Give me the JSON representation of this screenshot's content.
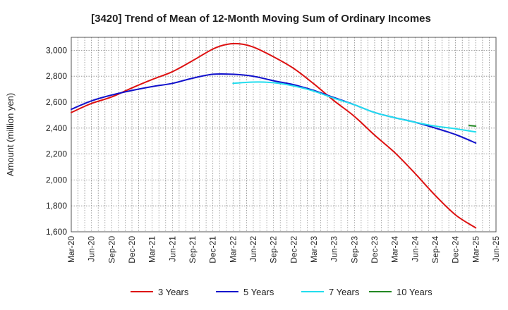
{
  "chart_data": {
    "type": "line",
    "title": "[3420]  Trend of Mean of 12-Month Moving Sum of Ordinary Incomes",
    "xlabel": "",
    "ylabel": "Amount (million yen)",
    "ylim": [
      1600,
      3100
    ],
    "yticks": [
      1600,
      1800,
      2000,
      2200,
      2400,
      2600,
      2800,
      3000
    ],
    "ytick_labels": [
      "1,600",
      "1,800",
      "2,000",
      "2,200",
      "2,400",
      "2,600",
      "2,800",
      "3,000"
    ],
    "x_tick_labels": [
      "Mar-20",
      "Jun-20",
      "Sep-20",
      "Dec-20",
      "Mar-21",
      "Jun-21",
      "Sep-21",
      "Dec-21",
      "Mar-22",
      "Jun-22",
      "Sep-22",
      "Dec-22",
      "Mar-23",
      "Jun-23",
      "Sep-23",
      "Dec-23",
      "Mar-24",
      "Jun-24",
      "Sep-24",
      "Dec-24",
      "Mar-25",
      "Jun-25"
    ],
    "x_unit": "month index from Mar-20",
    "grid": true,
    "series": [
      {
        "name": "3 Years",
        "color": "#dd1111",
        "x": [
          0,
          3,
          6,
          9,
          12,
          15,
          18,
          21,
          23,
          25,
          27,
          30,
          33,
          36,
          39,
          42,
          45,
          48,
          51,
          54,
          57,
          60
        ],
        "values": [
          2520,
          2590,
          2640,
          2710,
          2775,
          2835,
          2920,
          3010,
          3045,
          3050,
          3025,
          2950,
          2860,
          2740,
          2610,
          2490,
          2345,
          2210,
          2050,
          1880,
          1730,
          1630
        ]
      },
      {
        "name": "5 Years",
        "color": "#1111cc",
        "x": [
          0,
          3,
          6,
          9,
          12,
          15,
          18,
          21,
          24,
          27,
          30,
          33,
          36,
          39,
          42,
          45,
          48,
          51,
          54,
          57,
          60
        ],
        "values": [
          2545,
          2610,
          2655,
          2690,
          2720,
          2745,
          2785,
          2815,
          2815,
          2800,
          2765,
          2735,
          2690,
          2635,
          2580,
          2520,
          2480,
          2445,
          2400,
          2350,
          2285
        ]
      },
      {
        "name": "7 Years",
        "color": "#22ddee",
        "x": [
          24,
          27,
          30,
          33,
          36,
          39,
          42,
          45,
          48,
          51,
          54,
          57,
          60
        ],
        "values": [
          2745,
          2755,
          2750,
          2725,
          2685,
          2630,
          2580,
          2520,
          2480,
          2445,
          2415,
          2395,
          2370
        ]
      },
      {
        "name": "10 Years",
        "color": "#228822",
        "x": [
          59,
          60
        ],
        "values": [
          2420,
          2415
        ]
      }
    ],
    "legend": {
      "position": "bottom",
      "entries": [
        "3 Years",
        "5 Years",
        "7 Years",
        "10 Years"
      ]
    }
  }
}
